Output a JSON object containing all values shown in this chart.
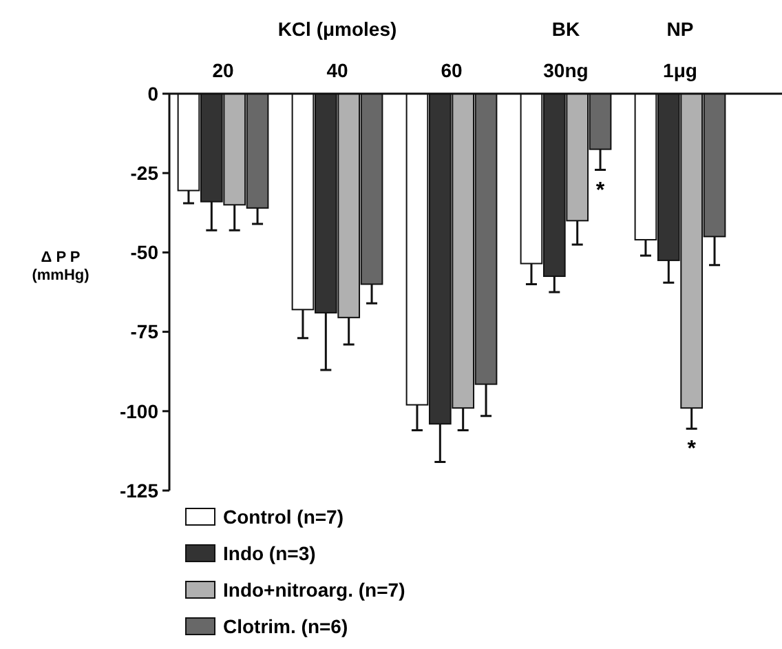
{
  "chart_data": {
    "type": "bar",
    "ylabel": "Δ P P\n(mmHg)",
    "categories": [
      "20",
      "40",
      "60",
      "30ng",
      "1μg"
    ],
    "series": [
      {
        "name": "Control (n=7)",
        "color": "#ffffff",
        "values": [
          -30.5,
          -68,
          -98,
          -53.5,
          -46
        ],
        "errors": [
          [
            -34.5,
            -30.5
          ],
          [
            -77,
            -68
          ],
          [
            -106,
            -98
          ],
          [
            -60,
            -53.5
          ],
          [
            -51,
            -46
          ]
        ]
      },
      {
        "name": "Indo (n=3)",
        "color": "#333333",
        "values": [
          -34,
          -69,
          -104,
          -57.5,
          -52.5
        ],
        "errors": [
          [
            -43,
            -34
          ],
          [
            -87,
            -69
          ],
          [
            -116,
            -104
          ],
          [
            -62.5,
            -57.5
          ],
          [
            -59.5,
            -52.5
          ]
        ]
      },
      {
        "name": "Indo+nitroarg. (n=7)",
        "color": "#b0b0b0",
        "values": [
          -35,
          -70.5,
          -99,
          -40,
          -99
        ],
        "errors": [
          [
            -43,
            -35
          ],
          [
            -79,
            -70.5
          ],
          [
            -106,
            -99
          ],
          [
            -47.5,
            -40
          ],
          [
            -105.5,
            -99
          ]
        ]
      },
      {
        "name": "Clotrim. (n=6)",
        "color": "#686868",
        "values": [
          -36,
          -60,
          -91.5,
          -17.5,
          -45
        ],
        "errors": [
          [
            -41,
            -36
          ],
          [
            -66,
            -60
          ],
          [
            -101.5,
            -91.5
          ],
          [
            -24,
            -17.5
          ],
          [
            -54,
            -45
          ]
        ]
      }
    ],
    "ylim": [
      -125,
      0
    ],
    "yticks": [
      0,
      -25,
      -50,
      -75,
      -100,
      -125
    ],
    "legend": "bottom left",
    "annotations": [
      "KCl (μmoles)",
      "BK",
      "NP",
      {
        "text": "*",
        "x": "30ng",
        "y": -17.5
      },
      {
        "text": "*",
        "x": "1μg",
        "y": -99
      }
    ]
  }
}
